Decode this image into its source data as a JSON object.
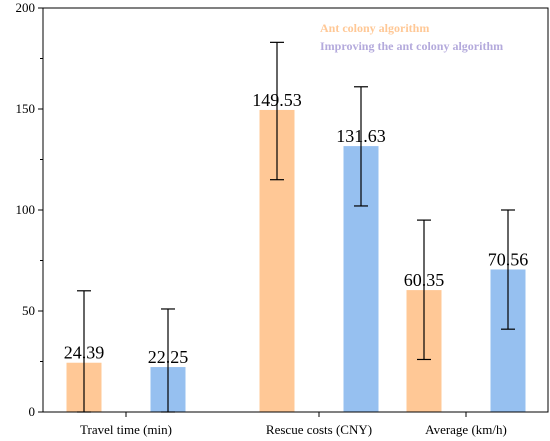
{
  "chart_data": {
    "type": "bar",
    "categories": [
      "Travel time (min)",
      "Rescue costs (CNY)",
      "Average (km/h)"
    ],
    "series": [
      {
        "name": "Ant colony algorithm",
        "color": "#ffc896",
        "values": [
          24.39,
          149.53,
          60.35
        ],
        "labels": [
          "24.39",
          "149.53",
          "60.35"
        ],
        "error_low": [
          0,
          115,
          26
        ],
        "error_high": [
          60,
          183,
          95
        ]
      },
      {
        "name": "Improving the ant colony algorithm",
        "color": "#96c0f0",
        "values": [
          22.25,
          131.63,
          70.56
        ],
        "labels": [
          "22.25",
          "131.63",
          "70.56"
        ],
        "error_low": [
          0,
          102,
          41
        ],
        "error_high": [
          51,
          161,
          100
        ]
      }
    ],
    "ylim": [
      0,
      200
    ],
    "yticks": [
      0,
      50,
      100,
      150,
      200
    ],
    "title": "",
    "xlabel": "",
    "ylabel": "",
    "legend_position": "top-right",
    "legend_text_colors": [
      "#ffc896",
      "#b4aadc"
    ]
  }
}
